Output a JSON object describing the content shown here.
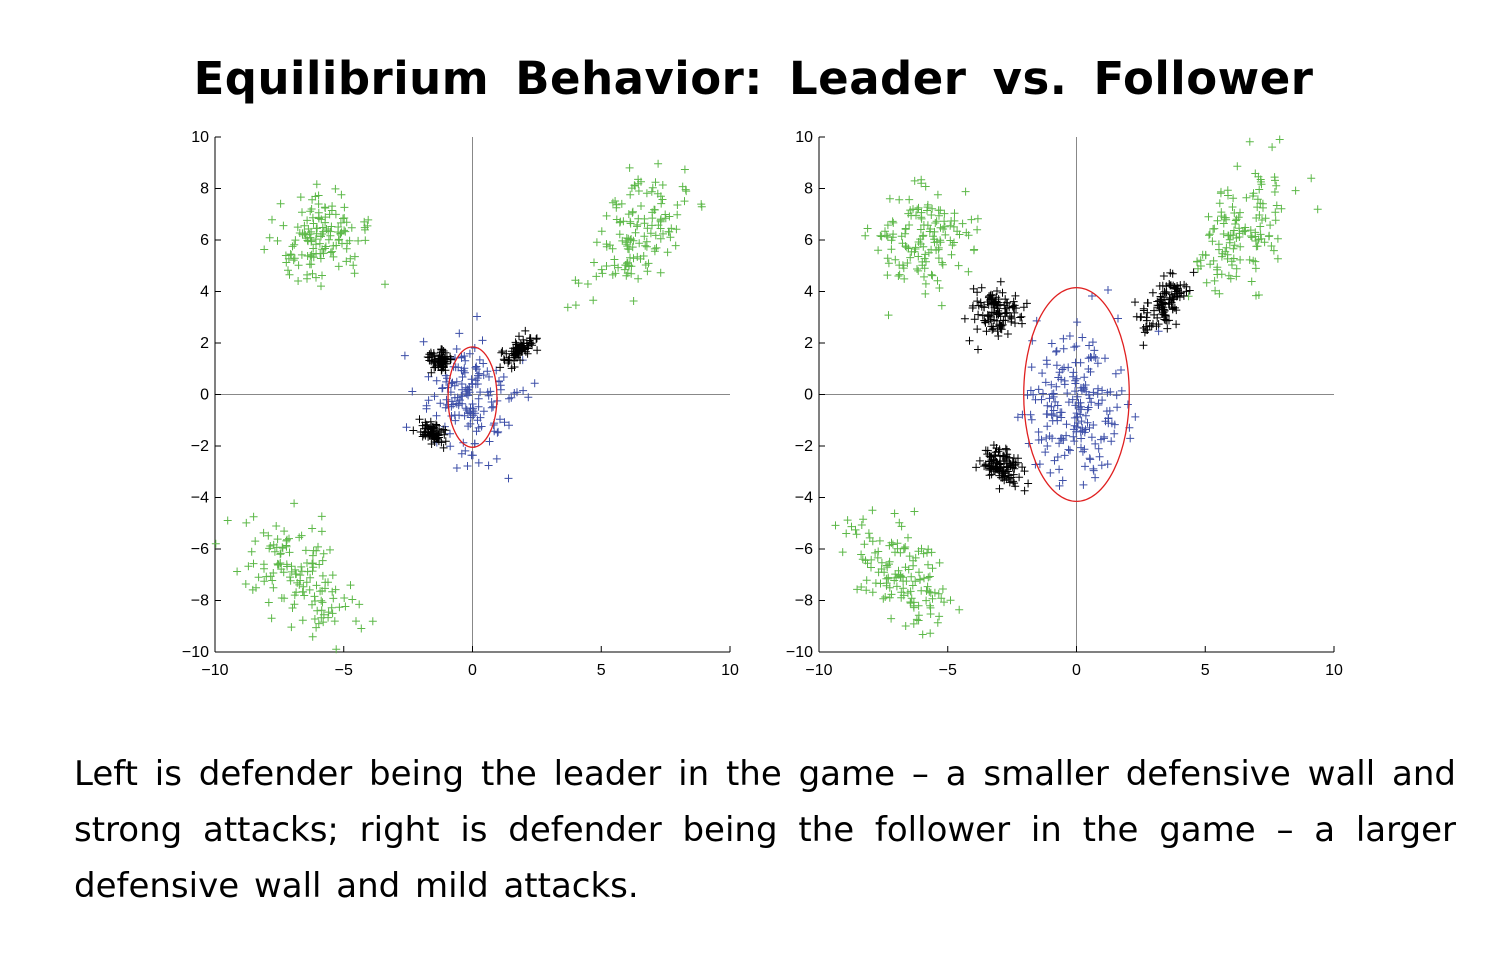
{
  "slide": {
    "title": "Equilibrium Behavior: Leader vs. Follower",
    "caption": "Left is defender being the leader in the game – a smaller defensive wall and strong attacks; right is defender being the follower in the game – a larger defensive wall and mild attacks."
  },
  "colors": {
    "green": "#5cb848",
    "blue": "#3d4fa8",
    "black": "#000000",
    "ellipse": "#e02020",
    "axis": "#888888"
  },
  "chart_data": [
    {
      "type": "scatter",
      "title": "",
      "xlabel": "",
      "ylabel": "",
      "xlim": [
        -10,
        10
      ],
      "ylim": [
        -10,
        10
      ],
      "xticks": [
        "−10",
        "−5",
        "0",
        "5",
        "10"
      ],
      "yticks": [
        "10",
        "8",
        "6",
        "4",
        "2",
        "0",
        "−2",
        "−4",
        "−6",
        "−8",
        "−10"
      ],
      "marker": "+",
      "crosshair_at_origin": true,
      "clusters": [
        {
          "color": "green",
          "center": [
            -6,
            6
          ],
          "spread": [
            0.9,
            0.9
          ],
          "corr": 0,
          "count": 140
        },
        {
          "color": "green",
          "center": [
            6.3,
            6.2
          ],
          "spread": [
            1.0,
            1.2
          ],
          "corr": 0.55,
          "count": 140
        },
        {
          "color": "green",
          "center": [
            -6.8,
            -7.0
          ],
          "spread": [
            1.1,
            1.1
          ],
          "corr": -0.55,
          "count": 140
        },
        {
          "color": "blue",
          "center": [
            0,
            -0.3
          ],
          "spread": [
            0.85,
            1.3
          ],
          "corr": 0.1,
          "count": 160
        },
        {
          "color": "black",
          "center": [
            -1.3,
            1.3
          ],
          "spread": [
            0.25,
            0.2
          ],
          "corr": 0,
          "count": 70
        },
        {
          "color": "black",
          "center": [
            1.8,
            1.7
          ],
          "spread": [
            0.3,
            0.3
          ],
          "corr": 0.6,
          "count": 70
        },
        {
          "color": "black",
          "center": [
            -1.5,
            -1.5
          ],
          "spread": [
            0.25,
            0.22
          ],
          "corr": -0.3,
          "count": 70
        }
      ],
      "ellipse": {
        "center": [
          0,
          -0.1
        ],
        "rx": 0.95,
        "ry": 1.95
      }
    },
    {
      "type": "scatter",
      "title": "",
      "xlabel": "",
      "ylabel": "",
      "xlim": [
        -10,
        10
      ],
      "ylim": [
        -10,
        10
      ],
      "xticks": [
        "−10",
        "−5",
        "0",
        "5",
        "10"
      ],
      "yticks": [
        "10",
        "8",
        "6",
        "4",
        "2",
        "0",
        "−2",
        "−4",
        "−6",
        "−8",
        "−10"
      ],
      "marker": "+",
      "crosshair_at_origin": true,
      "clusters": [
        {
          "color": "green",
          "center": [
            -6,
            6
          ],
          "spread": [
            0.9,
            0.9
          ],
          "corr": 0,
          "count": 140
        },
        {
          "color": "green",
          "center": [
            6.3,
            6.2
          ],
          "spread": [
            1.0,
            1.2
          ],
          "corr": 0.55,
          "count": 140
        },
        {
          "color": "green",
          "center": [
            -6.8,
            -7.0
          ],
          "spread": [
            1.1,
            1.1
          ],
          "corr": -0.55,
          "count": 140
        },
        {
          "color": "blue",
          "center": [
            0,
            -0.3
          ],
          "spread": [
            0.95,
            1.45
          ],
          "corr": 0.1,
          "count": 200
        },
        {
          "color": "black",
          "center": [
            -3.1,
            3.3
          ],
          "spread": [
            0.5,
            0.45
          ],
          "corr": 0,
          "count": 110
        },
        {
          "color": "black",
          "center": [
            3.4,
            3.5
          ],
          "spread": [
            0.45,
            0.55
          ],
          "corr": 0.6,
          "count": 110
        },
        {
          "color": "black",
          "center": [
            -2.9,
            -2.8
          ],
          "spread": [
            0.4,
            0.35
          ],
          "corr": -0.4,
          "count": 110
        }
      ],
      "ellipse": {
        "center": [
          0,
          0
        ],
        "rx": 2.05,
        "ry": 4.15
      }
    }
  ]
}
